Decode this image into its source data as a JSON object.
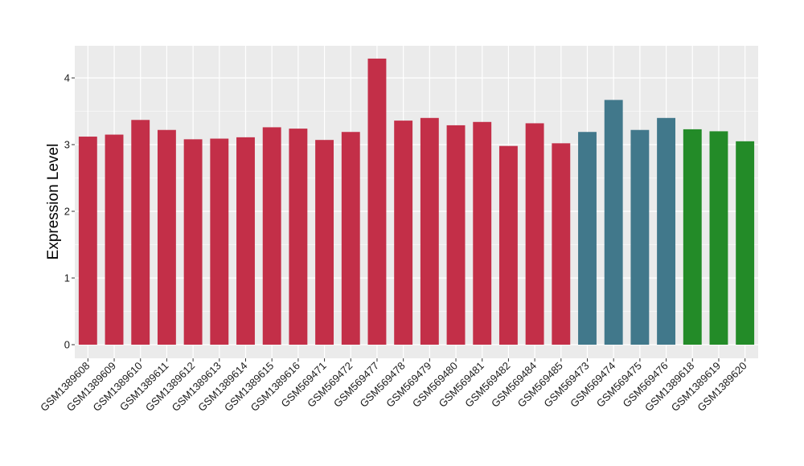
{
  "chart_data": {
    "type": "bar",
    "title": "",
    "xlabel": "",
    "ylabel": "Expression Level",
    "ylim": [
      0,
      4.5
    ],
    "yticks": [
      0,
      1,
      2,
      3,
      4
    ],
    "grid": true,
    "categories": [
      "GSM1389608",
      "GSM1389609",
      "GSM1389610",
      "GSM1389611",
      "GSM1389612",
      "GSM1389613",
      "GSM1389614",
      "GSM1389615",
      "GSM1389616",
      "GSM569471",
      "GSM569472",
      "GSM569477",
      "GSM569478",
      "GSM569479",
      "GSM569480",
      "GSM569481",
      "GSM569482",
      "GSM569484",
      "GSM569485",
      "GSM569473",
      "GSM569474",
      "GSM569475",
      "GSM569476",
      "GSM1389618",
      "GSM1389619",
      "GSM1389620"
    ],
    "values": [
      3.12,
      3.15,
      3.37,
      3.22,
      3.08,
      3.09,
      3.11,
      3.26,
      3.24,
      3.07,
      3.19,
      4.29,
      3.36,
      3.4,
      3.29,
      3.34,
      2.98,
      3.32,
      3.02,
      3.19,
      3.67,
      3.22,
      3.4,
      3.23,
      3.2,
      3.05
    ],
    "bar_colors": [
      "#c32f48",
      "#c32f48",
      "#c32f48",
      "#c32f48",
      "#c32f48",
      "#c32f48",
      "#c32f48",
      "#c32f48",
      "#c32f48",
      "#c32f48",
      "#c32f48",
      "#c32f48",
      "#c32f48",
      "#c32f48",
      "#c32f48",
      "#c32f48",
      "#c32f48",
      "#c32f48",
      "#c32f48",
      "#41788b",
      "#41788b",
      "#41788b",
      "#41788b",
      "#238b28",
      "#238b28",
      "#238b28"
    ],
    "panel_background": "#ebebeb",
    "grid_color": "#ffffff"
  }
}
